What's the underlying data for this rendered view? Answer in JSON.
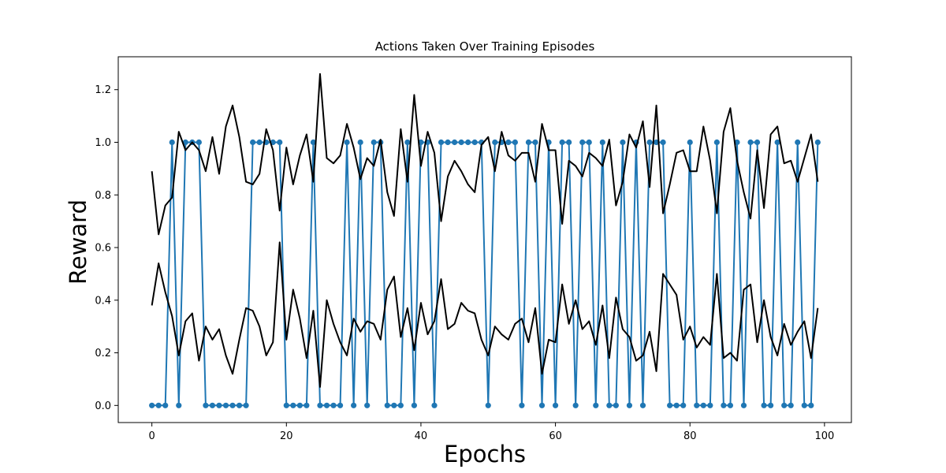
{
  "chart_data": {
    "type": "line",
    "title": "Actions Taken Over Training Episodes",
    "xlabel": "Epochs",
    "ylabel": "Reward",
    "xlim": [
      -5.0,
      104.0
    ],
    "ylim": [
      -0.065,
      1.325
    ],
    "xticks": [
      0,
      20,
      40,
      60,
      80,
      100
    ],
    "yticks": [
      0.0,
      0.2,
      0.4,
      0.6,
      0.8,
      1.0,
      1.2
    ],
    "grid": false,
    "colors": {
      "actions": "#1f77b4",
      "q_lines": "#000000"
    },
    "series": [
      {
        "style": "line-markers",
        "values": [
          0,
          0,
          0,
          1,
          0,
          1,
          1,
          1,
          0,
          0,
          0,
          0,
          0,
          0,
          0,
          1,
          1,
          1,
          1,
          1,
          0,
          0,
          0,
          0,
          1,
          0,
          0,
          0,
          0,
          1,
          0,
          1,
          0,
          1,
          1,
          0,
          0,
          0,
          1,
          0,
          1,
          1,
          0,
          1,
          1,
          1,
          1,
          1,
          1,
          1,
          0,
          1,
          1,
          1,
          1,
          0,
          1,
          1,
          0,
          1,
          0,
          1,
          1,
          0,
          1,
          1,
          0,
          1,
          0,
          0,
          1,
          0,
          1,
          0,
          1,
          1,
          1,
          0,
          0,
          0,
          1,
          0,
          0,
          0,
          1,
          0,
          0,
          1,
          0,
          1,
          1,
          0,
          0,
          1,
          0,
          0,
          1,
          0,
          0,
          1
        ]
      },
      {
        "style": "line",
        "values": [
          0.89,
          0.65,
          0.76,
          0.79,
          1.04,
          0.97,
          1.0,
          0.97,
          0.89,
          1.02,
          0.88,
          1.06,
          1.14,
          1.02,
          0.85,
          0.84,
          0.88,
          1.05,
          0.97,
          0.74,
          0.98,
          0.84,
          0.95,
          1.03,
          0.85,
          1.26,
          0.94,
          0.92,
          0.95,
          1.07,
          0.98,
          0.86,
          0.94,
          0.91,
          1.01,
          0.81,
          0.72,
          1.05,
          0.85,
          1.18,
          0.91,
          1.04,
          0.96,
          0.7,
          0.87,
          0.93,
          0.89,
          0.84,
          0.81,
          0.99,
          1.02,
          0.89,
          1.04,
          0.95,
          0.93,
          0.96,
          0.96,
          0.85,
          1.07,
          0.97,
          0.97,
          0.69,
          0.93,
          0.91,
          0.87,
          0.96,
          0.94,
          0.91,
          1.01,
          0.76,
          0.85,
          1.03,
          0.98,
          1.08,
          0.83,
          1.14,
          0.73,
          0.84,
          0.96,
          0.97,
          0.89,
          0.89,
          1.06,
          0.93,
          0.73,
          1.04,
          1.13,
          0.93,
          0.81,
          0.71,
          0.97,
          0.75,
          1.03,
          1.06,
          0.92,
          0.93,
          0.85,
          0.94,
          1.03,
          0.85
        ]
      },
      {
        "style": "line",
        "values": [
          0.38,
          0.54,
          0.43,
          0.34,
          0.19,
          0.32,
          0.35,
          0.17,
          0.3,
          0.25,
          0.29,
          0.19,
          0.12,
          0.25,
          0.37,
          0.36,
          0.3,
          0.19,
          0.24,
          0.62,
          0.25,
          0.44,
          0.33,
          0.18,
          0.36,
          0.07,
          0.4,
          0.31,
          0.24,
          0.19,
          0.33,
          0.28,
          0.32,
          0.31,
          0.25,
          0.44,
          0.49,
          0.26,
          0.37,
          0.21,
          0.39,
          0.27,
          0.32,
          0.48,
          0.29,
          0.31,
          0.39,
          0.36,
          0.35,
          0.25,
          0.19,
          0.3,
          0.27,
          0.25,
          0.31,
          0.33,
          0.24,
          0.37,
          0.12,
          0.25,
          0.24,
          0.46,
          0.31,
          0.4,
          0.29,
          0.32,
          0.23,
          0.38,
          0.18,
          0.41,
          0.29,
          0.26,
          0.17,
          0.19,
          0.28,
          0.13,
          0.5,
          0.46,
          0.42,
          0.25,
          0.3,
          0.22,
          0.26,
          0.23,
          0.5,
          0.18,
          0.2,
          0.17,
          0.44,
          0.46,
          0.24,
          0.4,
          0.26,
          0.19,
          0.31,
          0.23,
          0.28,
          0.32,
          0.18,
          0.37
        ]
      }
    ]
  }
}
